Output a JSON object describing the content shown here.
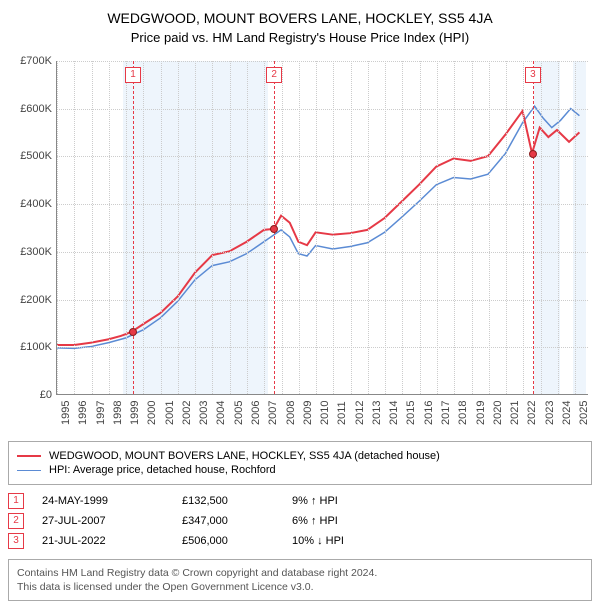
{
  "title": "WEDGWOOD, MOUNT BOVERS LANE, HOCKLEY, SS5 4JA",
  "subtitle": "Price paid vs. HM Land Registry's House Price Index (HPI)",
  "chart": {
    "type": "line",
    "background_color": "#ffffff",
    "grid_color": "#cccccc",
    "shade_color": "#e0ecf9",
    "ylabel_fontsize": 11,
    "xlabel_fontsize": 11,
    "ylim": [
      0,
      700000
    ],
    "ytick_step": 100000,
    "yticks": [
      "£0",
      "£100K",
      "£200K",
      "£300K",
      "£400K",
      "£500K",
      "£600K",
      "£700K"
    ],
    "x_start_year": 1995,
    "x_end_year": 2025,
    "xticks": [
      "1995",
      "1996",
      "1997",
      "1998",
      "1999",
      "2000",
      "2001",
      "2002",
      "2003",
      "2004",
      "2005",
      "2006",
      "2007",
      "2008",
      "2009",
      "2010",
      "2011",
      "2012",
      "2013",
      "2014",
      "2015",
      "2016",
      "2017",
      "2018",
      "2019",
      "2020",
      "2021",
      "2022",
      "2023",
      "2024",
      "2025"
    ],
    "shaded_bands": [
      {
        "start_year": 1998.8,
        "end_year": 2007.2
      },
      {
        "start_year": 2022.6,
        "end_year": 2024.1
      },
      {
        "start_year": 2024.85,
        "end_year": 2025.6
      }
    ],
    "series": [
      {
        "id": "property",
        "label": "WEDGWOOD, MOUNT BOVERS LANE, HOCKLEY, SS5 4JA (detached house)",
        "color": "#e63946",
        "line_width": 2,
        "data": [
          [
            1995.0,
            103000
          ],
          [
            1996.0,
            103000
          ],
          [
            1997.0,
            108000
          ],
          [
            1998.0,
            115000
          ],
          [
            1998.7,
            122000
          ],
          [
            1999.0,
            126000
          ],
          [
            1999.4,
            132500
          ],
          [
            2000.0,
            147000
          ],
          [
            2001.0,
            170000
          ],
          [
            2002.0,
            205000
          ],
          [
            2003.0,
            255000
          ],
          [
            2004.0,
            292000
          ],
          [
            2005.0,
            300000
          ],
          [
            2006.0,
            320000
          ],
          [
            2007.0,
            345000
          ],
          [
            2007.57,
            347000
          ],
          [
            2008.0,
            375000
          ],
          [
            2008.5,
            360000
          ],
          [
            2009.0,
            320000
          ],
          [
            2009.5,
            313000
          ],
          [
            2010.0,
            340000
          ],
          [
            2011.0,
            335000
          ],
          [
            2012.0,
            338000
          ],
          [
            2013.0,
            345000
          ],
          [
            2014.0,
            370000
          ],
          [
            2015.0,
            405000
          ],
          [
            2016.0,
            440000
          ],
          [
            2017.0,
            478000
          ],
          [
            2018.0,
            495000
          ],
          [
            2019.0,
            490000
          ],
          [
            2020.0,
            500000
          ],
          [
            2021.0,
            545000
          ],
          [
            2022.0,
            595000
          ],
          [
            2022.55,
            506000
          ],
          [
            2023.0,
            560000
          ],
          [
            2023.5,
            540000
          ],
          [
            2024.0,
            555000
          ],
          [
            2024.7,
            530000
          ],
          [
            2025.3,
            550000
          ]
        ]
      },
      {
        "id": "hpi",
        "label": "HPI: Average price, detached house, Rochford",
        "color": "#5b8bd4",
        "line_width": 1.5,
        "data": [
          [
            1995.0,
            97000
          ],
          [
            1996.0,
            96000
          ],
          [
            1997.0,
            100000
          ],
          [
            1998.0,
            108000
          ],
          [
            1999.0,
            118000
          ],
          [
            2000.0,
            135000
          ],
          [
            2001.0,
            160000
          ],
          [
            2002.0,
            195000
          ],
          [
            2003.0,
            240000
          ],
          [
            2004.0,
            270000
          ],
          [
            2005.0,
            278000
          ],
          [
            2006.0,
            295000
          ],
          [
            2007.0,
            320000
          ],
          [
            2008.0,
            345000
          ],
          [
            2008.5,
            330000
          ],
          [
            2009.0,
            295000
          ],
          [
            2009.5,
            290000
          ],
          [
            2010.0,
            312000
          ],
          [
            2011.0,
            305000
          ],
          [
            2012.0,
            310000
          ],
          [
            2013.0,
            318000
          ],
          [
            2014.0,
            340000
          ],
          [
            2015.0,
            372000
          ],
          [
            2016.0,
            405000
          ],
          [
            2017.0,
            440000
          ],
          [
            2018.0,
            455000
          ],
          [
            2019.0,
            452000
          ],
          [
            2020.0,
            462000
          ],
          [
            2021.0,
            505000
          ],
          [
            2022.0,
            570000
          ],
          [
            2022.7,
            605000
          ],
          [
            2023.2,
            580000
          ],
          [
            2023.7,
            560000
          ],
          [
            2024.2,
            575000
          ],
          [
            2024.8,
            600000
          ],
          [
            2025.3,
            585000
          ]
        ]
      }
    ],
    "markers": [
      {
        "id": "1",
        "year": 1999.4,
        "price": 132500
      },
      {
        "id": "2",
        "year": 2007.57,
        "price": 347000
      },
      {
        "id": "3",
        "year": 2022.55,
        "price": 506000
      }
    ]
  },
  "legend": {
    "items": [
      {
        "series_id": "property",
        "color": "#e63946"
      },
      {
        "series_id": "hpi",
        "color": "#5b8bd4"
      }
    ]
  },
  "sales": [
    {
      "id": "1",
      "date": "24-MAY-1999",
      "price": "£132,500",
      "delta": "9% ↑ HPI"
    },
    {
      "id": "2",
      "date": "27-JUL-2007",
      "price": "£347,000",
      "delta": "6% ↑ HPI"
    },
    {
      "id": "3",
      "date": "21-JUL-2022",
      "price": "£506,000",
      "delta": "10% ↓ HPI"
    }
  ],
  "footnote": {
    "line1": "Contains HM Land Registry data © Crown copyright and database right 2024.",
    "line2": "This data is licensed under the Open Government Licence v3.0."
  }
}
